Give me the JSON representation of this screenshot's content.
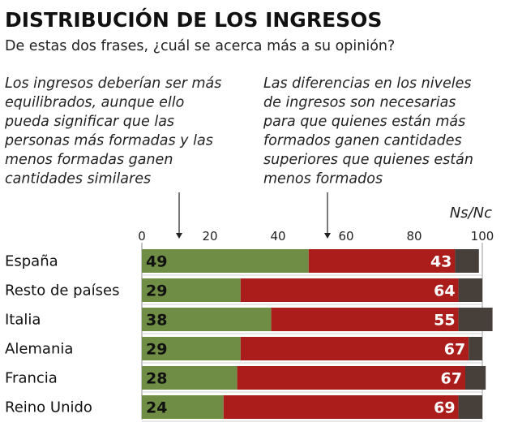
{
  "chart_data": {
    "type": "bar",
    "stacked": true,
    "orientation": "horizontal",
    "title": "DISTRIBUCIÓN DE LOS INGRESOS",
    "subtitle": "De estas dos frases, ¿cuál se acerca más a su opinión?",
    "left_statement": [
      "Los ingresos deberían ser más",
      "equilibrados, aunque ello",
      "pueda significar que las",
      "personas más formadas y las",
      "menos formadas ganen",
      "cantidades similares"
    ],
    "right_statement": [
      "Las diferencias en los niveles",
      "de ingresos son necesarias",
      "para que quienes están más",
      "formados ganen cantidades",
      "superiores que quienes están",
      "menos formados"
    ],
    "nsnc_label": "Ns/Nc",
    "xlim": [
      0,
      100
    ],
    "xticks": [
      "0",
      "20",
      "40",
      "60",
      "80",
      "100"
    ],
    "grid": false,
    "categories": [
      "España",
      "Resto de países",
      "Italia",
      "Alemania",
      "Francia",
      "Reino Unido"
    ],
    "series": [
      {
        "values": [
          49,
          29,
          38,
          29,
          28,
          24
        ],
        "color": "#6f8d45"
      },
      {
        "values": [
          43,
          64,
          55,
          67,
          67,
          69
        ],
        "color": "#aa1d1b"
      },
      {
        "values": [
          7,
          7,
          10,
          4,
          6,
          7
        ],
        "color": "#463f3a"
      }
    ]
  }
}
